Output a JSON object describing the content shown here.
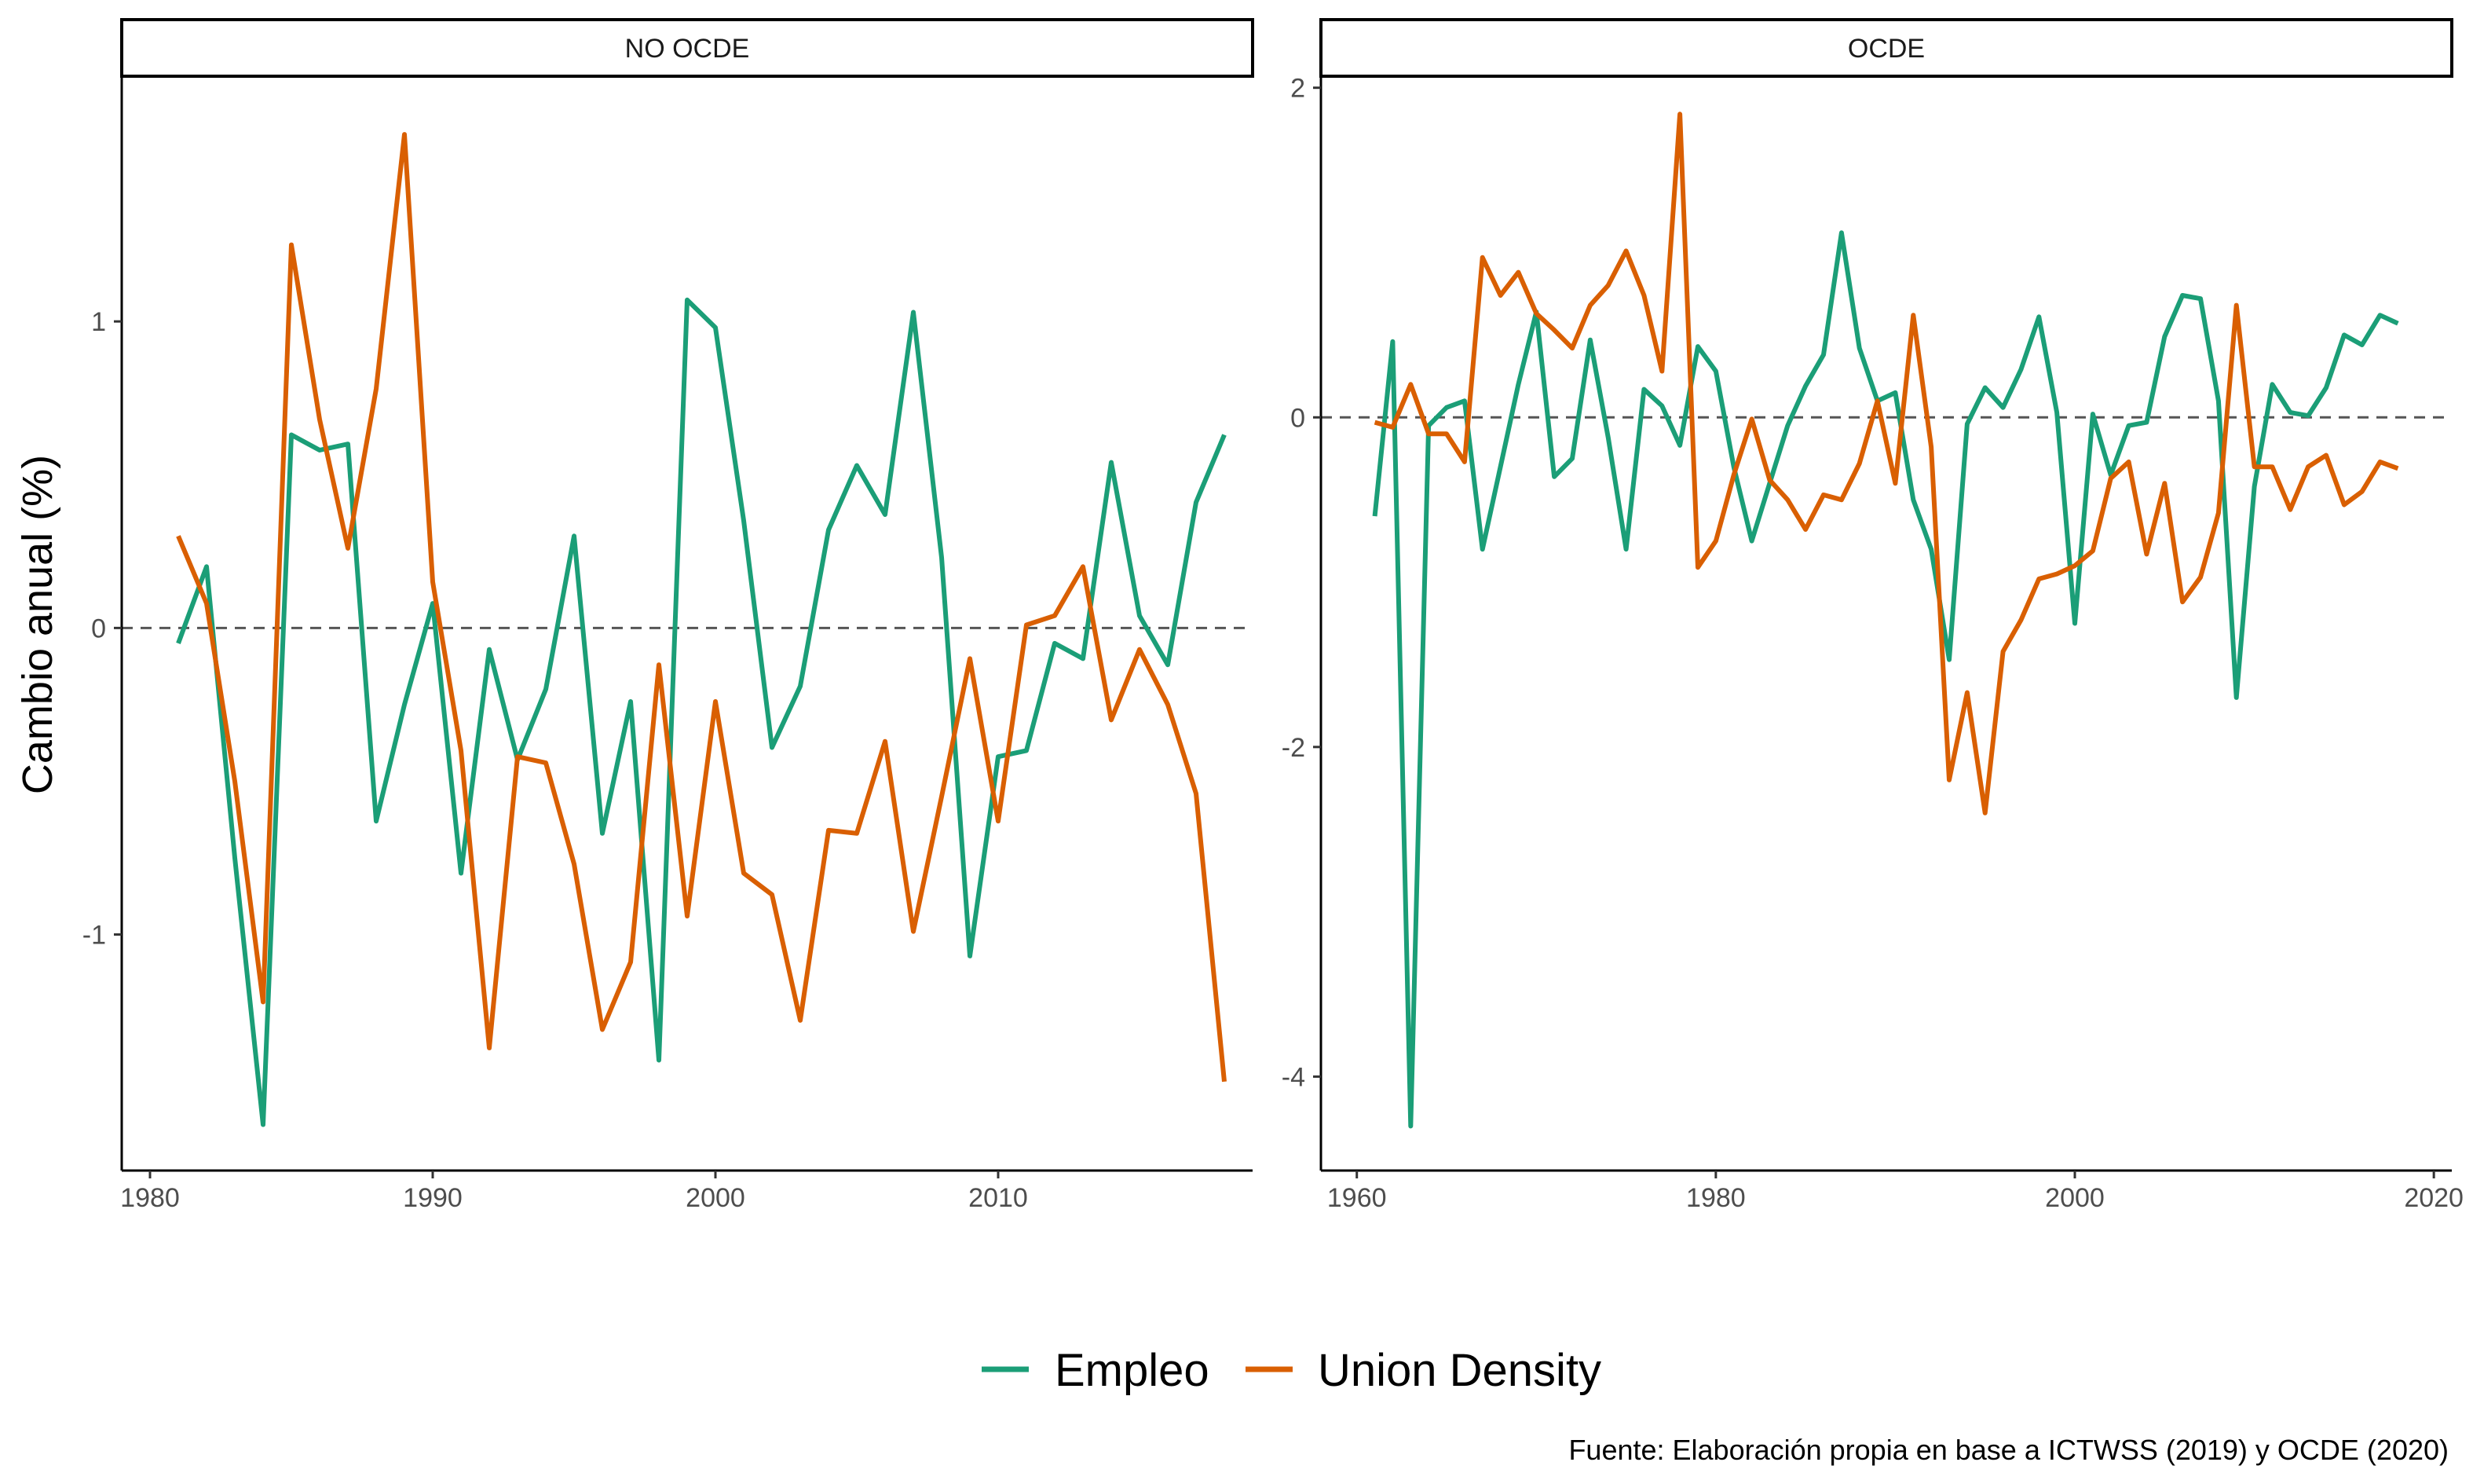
{
  "chart_data": {
    "type": "line",
    "ylabel": "Cambio anual (%)",
    "xlabel": "",
    "caption": "Fuente: Elaboración propia en base a ICTWSS (2019) y OCDE (2020)",
    "legend_position": "bottom",
    "reference_line": {
      "y": 0,
      "style": "dashed",
      "color": "#555555"
    },
    "series_meta": [
      {
        "name": "Empleo",
        "color": "#1b9e77"
      },
      {
        "name": "Union Density",
        "color": "#d95f02"
      }
    ],
    "panels": [
      {
        "title": "NO OCDE",
        "xlim": [
          1979,
          2019
        ],
        "ylim": [
          -1.77,
          1.8
        ],
        "xticks": [
          1980,
          1990,
          2000,
          2010
        ],
        "yticks": [
          -1,
          0,
          1
        ],
        "series": [
          {
            "name": "Empleo",
            "x": [
              1981,
              1982,
              1983,
              1984,
              1985,
              1986,
              1987,
              1988,
              1989,
              1990,
              1991,
              1992,
              1993,
              1994,
              1995,
              1996,
              1997,
              1998,
              1999,
              2000,
              2001,
              2002,
              2003,
              2004,
              2005,
              2006,
              2007,
              2008,
              2009,
              2010,
              2011,
              2012,
              2013,
              2014,
              2015,
              2016,
              2017,
              2018
            ],
            "y": [
              -0.05,
              0.2,
              -0.75,
              -1.62,
              0.63,
              0.58,
              0.6,
              -0.63,
              -0.25,
              0.08,
              -0.8,
              -0.07,
              -0.43,
              -0.2,
              0.3,
              -0.67,
              -0.24,
              -1.41,
              1.07,
              0.98,
              0.35,
              -0.39,
              -0.19,
              0.32,
              0.53,
              0.37,
              1.03,
              0.23,
              -1.07,
              -0.42,
              -0.4,
              -0.05,
              -0.1,
              0.54,
              0.04,
              -0.12,
              0.41,
              0.63
            ]
          },
          {
            "name": "Union Density",
            "x": [
              1981,
              1982,
              1983,
              1984,
              1985,
              1986,
              1987,
              1988,
              1989,
              1990,
              1991,
              1992,
              1993,
              1994,
              1995,
              1996,
              1997,
              1998,
              1999,
              2000,
              2001,
              2002,
              2003,
              2004,
              2005,
              2006,
              2007,
              2008,
              2009,
              2010,
              2011,
              2012,
              2013,
              2014,
              2015,
              2016,
              2017,
              2018
            ],
            "y": [
              0.3,
              0.08,
              -0.5,
              -1.22,
              1.25,
              0.68,
              0.26,
              0.78,
              1.61,
              0.15,
              -0.4,
              -1.37,
              -0.42,
              -0.44,
              -0.77,
              -1.31,
              -1.09,
              -0.12,
              -0.94,
              -0.24,
              -0.8,
              -0.87,
              -1.28,
              -0.66,
              -0.67,
              -0.37,
              -0.99,
              -0.55,
              -0.1,
              -0.63,
              0.01,
              0.04,
              0.2,
              -0.3,
              -0.07,
              -0.25,
              -0.54,
              -1.48
            ]
          }
        ]
      },
      {
        "title": "OCDE",
        "xlim": [
          1958,
          2021
        ],
        "ylim": [
          -4.57,
          2.07
        ],
        "xticks": [
          1960,
          1980,
          2000,
          2020
        ],
        "yticks": [
          -4,
          -2,
          0,
          2
        ],
        "series": [
          {
            "name": "Empleo",
            "x": [
              1961,
              1962,
              1963,
              1964,
              1965,
              1966,
              1967,
              1968,
              1969,
              1970,
              1971,
              1972,
              1973,
              1974,
              1975,
              1976,
              1977,
              1978,
              1979,
              1980,
              1981,
              1982,
              1983,
              1984,
              1985,
              1986,
              1987,
              1988,
              1989,
              1990,
              1991,
              1992,
              1993,
              1994,
              1995,
              1996,
              1997,
              1998,
              1999,
              2000,
              2001,
              2002,
              2003,
              2004,
              2005,
              2006,
              2007,
              2008,
              2009,
              2010,
              2011,
              2012,
              2013,
              2014,
              2015,
              2016,
              2017,
              2018
            ],
            "y": [
              -0.6,
              0.46,
              -4.3,
              -0.05,
              0.06,
              0.1,
              -0.8,
              -0.3,
              0.2,
              0.64,
              -0.36,
              -0.25,
              0.47,
              -0.12,
              -0.8,
              0.17,
              0.07,
              -0.17,
              0.43,
              0.28,
              -0.3,
              -0.75,
              -0.4,
              -0.05,
              0.19,
              0.38,
              1.12,
              0.42,
              0.1,
              0.15,
              -0.5,
              -0.8,
              -1.47,
              -0.04,
              0.18,
              0.06,
              0.29,
              0.61,
              0.03,
              -1.25,
              0.02,
              -0.35,
              -0.05,
              -0.03,
              0.49,
              0.74,
              0.72,
              0.1,
              -1.7,
              -0.42,
              0.2,
              0.03,
              0.01,
              0.18,
              0.5,
              0.44,
              0.62,
              0.57
            ]
          },
          {
            "name": "Union Density",
            "x": [
              1961,
              1962,
              1963,
              1964,
              1965,
              1966,
              1967,
              1968,
              1969,
              1970,
              1971,
              1972,
              1973,
              1974,
              1975,
              1976,
              1977,
              1978,
              1979,
              1980,
              1981,
              1982,
              1983,
              1984,
              1985,
              1986,
              1987,
              1988,
              1989,
              1990,
              1991,
              1992,
              1993,
              1994,
              1995,
              1996,
              1997,
              1998,
              1999,
              2000,
              2001,
              2002,
              2003,
              2004,
              2005,
              2006,
              2007,
              2008,
              2009,
              2010,
              2011,
              2012,
              2013,
              2014,
              2015,
              2016,
              2017,
              2018
            ],
            "y": [
              -0.03,
              -0.06,
              0.2,
              -0.1,
              -0.1,
              -0.27,
              0.97,
              0.74,
              0.88,
              0.63,
              0.53,
              0.42,
              0.68,
              0.8,
              1.01,
              0.74,
              0.28,
              1.84,
              -0.91,
              -0.75,
              -0.35,
              -0.01,
              -0.38,
              -0.5,
              -0.68,
              -0.47,
              -0.5,
              -0.28,
              0.1,
              -0.4,
              0.62,
              -0.18,
              -2.2,
              -1.67,
              -2.4,
              -1.42,
              -1.23,
              -0.98,
              -0.95,
              -0.9,
              -0.81,
              -0.37,
              -0.27,
              -0.83,
              -0.4,
              -1.12,
              -0.97,
              -0.58,
              0.68,
              -0.3,
              -0.3,
              -0.56,
              -0.3,
              -0.23,
              -0.53,
              -0.45,
              -0.27,
              -0.31
            ]
          }
        ]
      }
    ]
  }
}
